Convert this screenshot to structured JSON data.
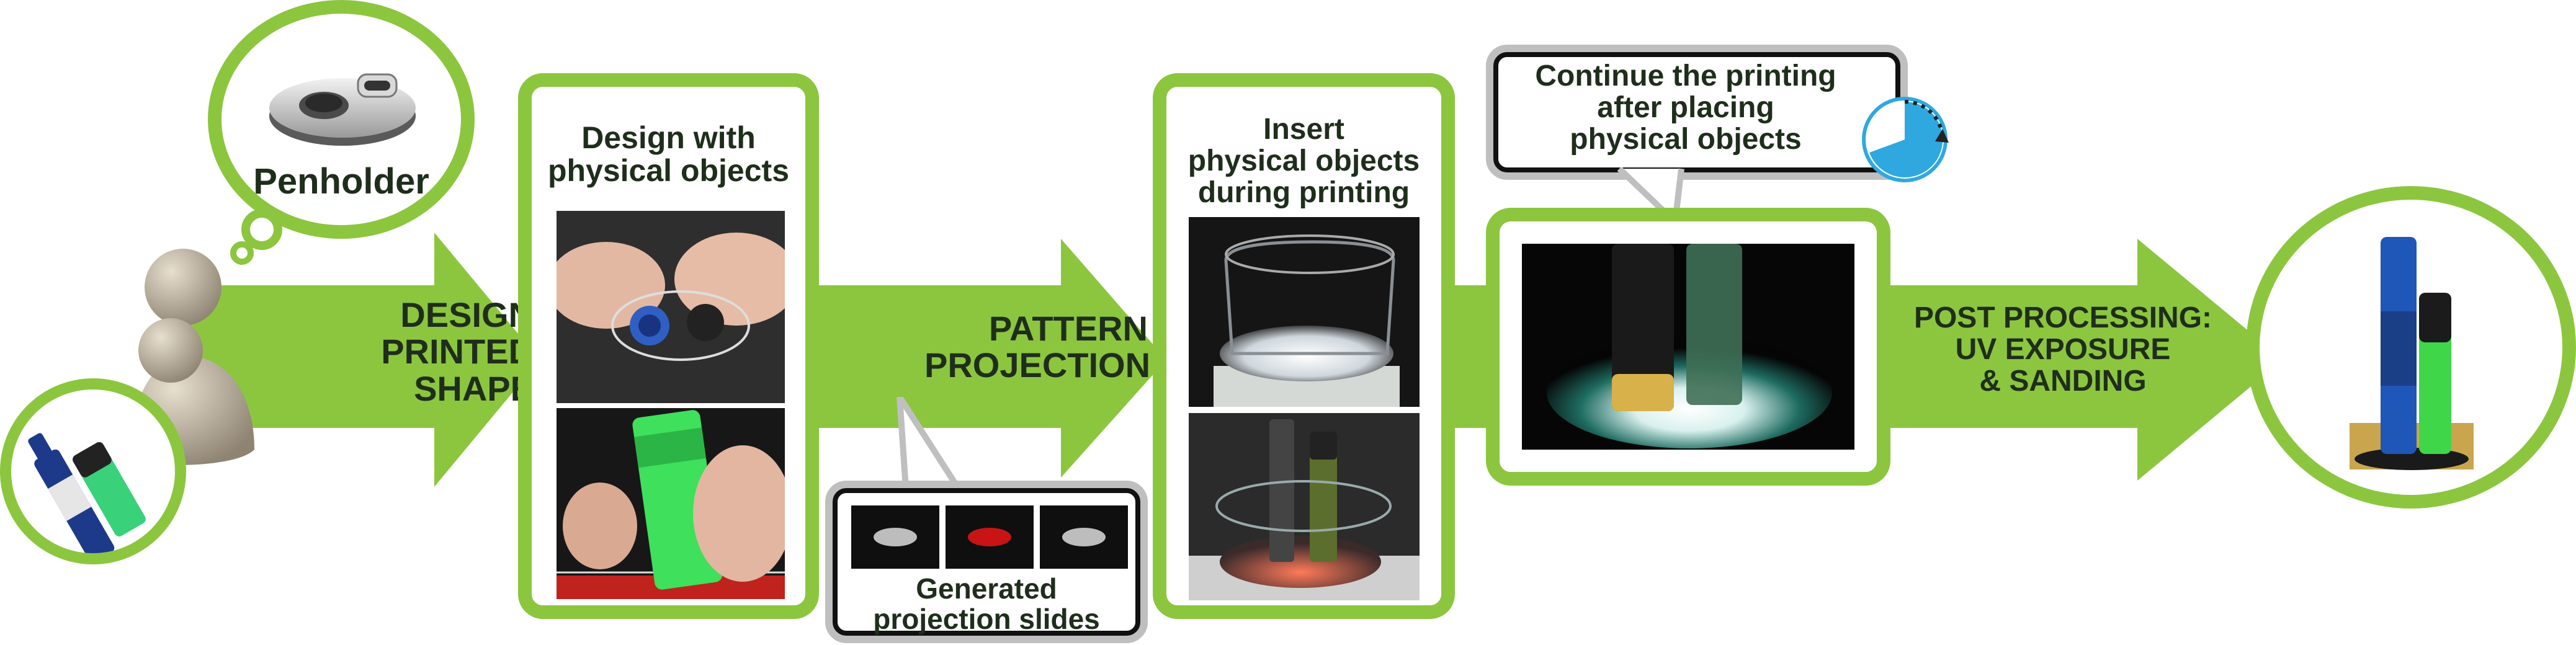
{
  "colors": {
    "arrow_green": "#8cc63f",
    "panel_green": "#8cc63f",
    "callout_gray": "#bfbfbf",
    "text_dark": "#1f2e1c",
    "timer_blue": "#2fa8df"
  },
  "icons": [
    "penholder-icon",
    "users-icon",
    "marker-pens-icon",
    "timer-icon"
  ],
  "penholder": {
    "label": "Penholder"
  },
  "steps": {
    "design_printed_shape": "DESIGN\nPRINTED\nSHAPE",
    "pattern_projection": "PATTERN\nPROJECTION",
    "post_processing": "POST PROCESSING:\nUV EXPOSURE\n& SANDING"
  },
  "panels": {
    "design": {
      "title": "Design with\nphysical objects"
    },
    "insert": {
      "title": "Insert\nphysical objects\nduring printing"
    }
  },
  "callouts": {
    "projection_slides": "Generated\nprojection slides",
    "continue_printing": "Continue the printing\nafter placing\nphysical objects"
  }
}
